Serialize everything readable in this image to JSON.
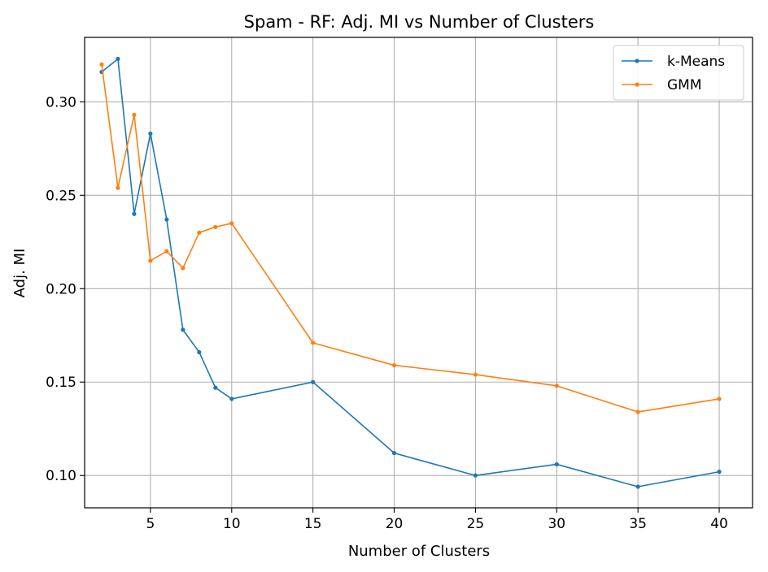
{
  "chart_data": {
    "type": "line",
    "title": "Spam - RF: Adj. MI vs Number of Clusters",
    "xlabel": "Number of Clusters",
    "ylabel": "Adj. MI",
    "xlim": [
      0.95,
      42.05
    ],
    "ylim": [
      0.0827,
      0.3345
    ],
    "xticks": [
      5,
      10,
      15,
      20,
      25,
      30,
      35,
      40
    ],
    "yticks": [
      0.1,
      0.15,
      0.2,
      0.25,
      0.3
    ],
    "xtick_labels": [
      "5",
      "10",
      "15",
      "20",
      "25",
      "30",
      "35",
      "40"
    ],
    "ytick_labels": [
      "0.10",
      "0.15",
      "0.20",
      "0.25",
      "0.30"
    ],
    "grid": true,
    "legend_position": "top-right",
    "x": [
      2,
      3,
      4,
      5,
      6,
      7,
      8,
      9,
      10,
      15,
      20,
      25,
      30,
      35,
      40
    ],
    "series": [
      {
        "name": "k-Means",
        "color": "#1f77b4",
        "values": [
          0.316,
          0.323,
          0.24,
          0.283,
          0.237,
          0.178,
          0.166,
          0.147,
          0.141,
          0.15,
          0.112,
          0.1,
          0.106,
          0.094,
          0.102
        ]
      },
      {
        "name": "GMM",
        "color": "#ff7f0e",
        "values": [
          0.32,
          0.254,
          0.293,
          0.215,
          0.22,
          0.211,
          0.23,
          0.233,
          0.235,
          0.171,
          0.159,
          0.154,
          0.148,
          0.134,
          0.141
        ]
      }
    ]
  }
}
